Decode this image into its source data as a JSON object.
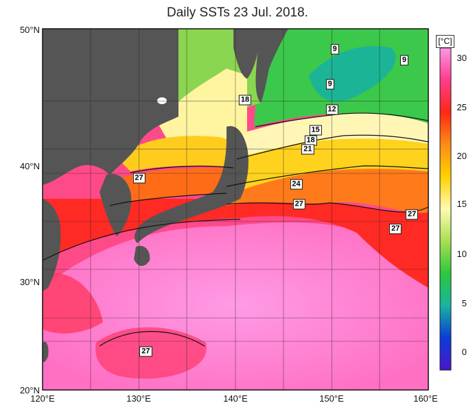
{
  "title": "Daily SSTs 23 Jul. 2018.",
  "map": {
    "lat_labels": [
      "50°N",
      "40°N",
      "30°N",
      "20°N"
    ],
    "lon_labels": [
      "120°E",
      "130°E",
      "140°E",
      "150°E",
      "160°E"
    ],
    "extent": {
      "lon_min": 120,
      "lon_max": 160,
      "lat_min": 20,
      "lat_max": 50
    }
  },
  "colorbar": {
    "unit": "[°C]",
    "ticks": [
      "30",
      "25",
      "20",
      "15",
      "10",
      "5",
      "0"
    ],
    "stops": [
      "#4a16c8",
      "#0a3cd8",
      "#18b4a0",
      "#2cc83c",
      "#a8e050",
      "#fffab4",
      "#ffd200",
      "#ff8c14",
      "#ff2814",
      "#ff3c8c",
      "#ff96e6"
    ]
  },
  "contour_labels": [
    {
      "text": "9",
      "lon": 150.3,
      "lat": 48.3
    },
    {
      "text": "9",
      "lon": 157.5,
      "lat": 47.4
    },
    {
      "text": "9",
      "lon": 149.8,
      "lat": 45.4
    },
    {
      "text": "18",
      "lon": 141.0,
      "lat": 44.1
    },
    {
      "text": "12",
      "lon": 150.0,
      "lat": 43.3
    },
    {
      "text": "15",
      "lon": 148.3,
      "lat": 41.6
    },
    {
      "text": "18",
      "lon": 147.8,
      "lat": 40.7
    },
    {
      "text": "21",
      "lon": 147.5,
      "lat": 40.0
    },
    {
      "text": "24",
      "lon": 146.3,
      "lat": 37.1
    },
    {
      "text": "27",
      "lon": 130.0,
      "lat": 37.6
    },
    {
      "text": "27",
      "lon": 146.6,
      "lat": 35.4
    },
    {
      "text": "27",
      "lon": 158.3,
      "lat": 34.6
    },
    {
      "text": "27",
      "lon": 156.6,
      "lat": 33.4
    },
    {
      "text": "27",
      "lon": 130.7,
      "lat": 23.2
    }
  ]
}
